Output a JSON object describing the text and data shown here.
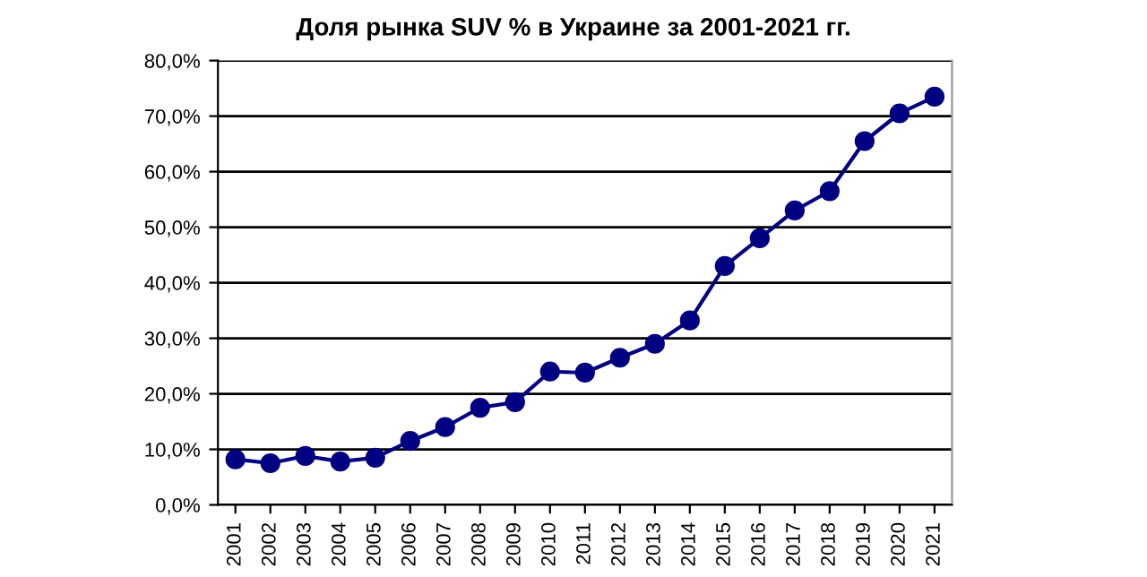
{
  "chart_data": {
    "type": "line",
    "title": "Доля рынка SUV % в Украине за 2001-2021 гг.",
    "categories": [
      "2001",
      "2002",
      "2003",
      "2004",
      "2005",
      "2006",
      "2007",
      "2008",
      "2009",
      "2010",
      "2011",
      "2012",
      "2013",
      "2014",
      "2015",
      "2016",
      "2017",
      "2018",
      "2019",
      "2020",
      "2021"
    ],
    "series": [
      {
        "color": "#000080",
        "values": [
          8.2,
          7.5,
          8.8,
          7.8,
          8.5,
          11.5,
          14,
          17.5,
          18.5,
          24,
          23.8,
          26.5,
          29,
          33.2,
          43,
          48,
          53,
          56.5,
          65.5,
          70.5,
          73.5
        ]
      }
    ],
    "ylim": [
      0,
      80
    ],
    "yticks": [
      {
        "value": 0,
        "label": "0,0%"
      },
      {
        "value": 10,
        "label": "10,0%"
      },
      {
        "value": 20,
        "label": "20,0%"
      },
      {
        "value": 30,
        "label": "30,0%"
      },
      {
        "value": 40,
        "label": "40,0%"
      },
      {
        "value": 50,
        "label": "50,0%"
      },
      {
        "value": 60,
        "label": "60,0%"
      },
      {
        "value": 70,
        "label": "70,0%"
      },
      {
        "value": 80,
        "label": "80,0%"
      }
    ],
    "grid": "y",
    "legend": false,
    "marker": "circle",
    "line_style": "solid"
  }
}
